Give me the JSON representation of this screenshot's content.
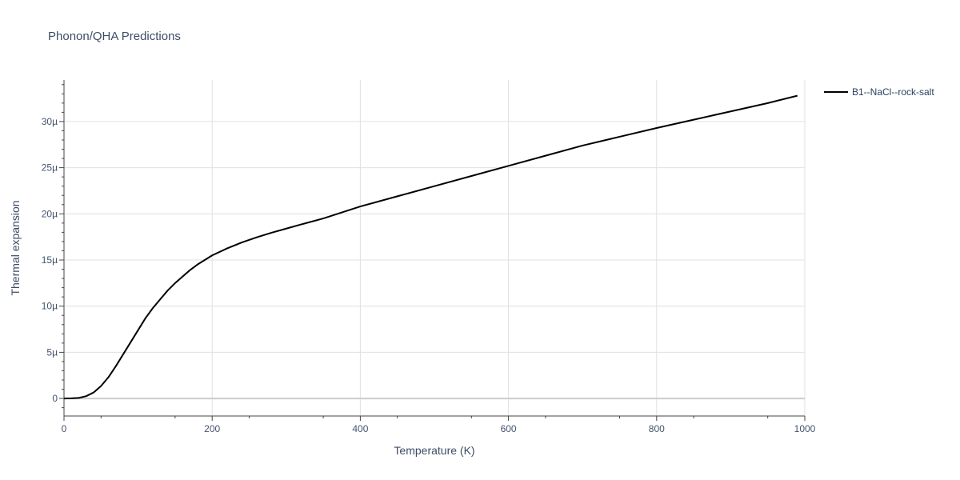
{
  "chart_data": {
    "type": "line",
    "title": "Phonon/QHA Predictions",
    "xlabel": "Temperature (K)",
    "ylabel": "Thermal expansion",
    "xlim": [
      0,
      1000
    ],
    "ylim": [
      -1.9e-06,
      3.45e-05
    ],
    "x_ticks": [
      0,
      200,
      400,
      600,
      800,
      1000
    ],
    "x_tick_labels": [
      "0",
      "200",
      "400",
      "600",
      "800",
      "1000"
    ],
    "y_ticks": [
      0,
      5e-06,
      1e-05,
      1.5e-05,
      2e-05,
      2.5e-05,
      3e-05
    ],
    "y_tick_labels": [
      "0",
      "5µ",
      "10µ",
      "15µ",
      "20µ",
      "25µ",
      "30µ"
    ],
    "grid": true,
    "legend_position": "top-right",
    "colors": {
      "line": "#000000",
      "grid": "#e0e0e0",
      "zero_line": "#cccccc",
      "axis": "#444444"
    },
    "series": [
      {
        "name": "B1--NaCl--rock-salt",
        "x": [
          0,
          10,
          20,
          30,
          40,
          50,
          60,
          70,
          80,
          90,
          100,
          110,
          120,
          130,
          140,
          150,
          160,
          170,
          180,
          190,
          200,
          220,
          240,
          260,
          280,
          300,
          320,
          350,
          400,
          450,
          500,
          550,
          600,
          650,
          700,
          750,
          800,
          850,
          900,
          950,
          990
        ],
        "y": [
          0,
          2e-08,
          6e-08,
          2.5e-07,
          6.5e-07,
          1.35e-06,
          2.3e-06,
          3.5e-06,
          4.8e-06,
          6.1e-06,
          7.4e-06,
          8.7e-06,
          9.8e-06,
          1.075e-05,
          1.17e-05,
          1.25e-05,
          1.32e-05,
          1.39e-05,
          1.45e-05,
          1.5e-05,
          1.55e-05,
          1.625e-05,
          1.69e-05,
          1.745e-05,
          1.795e-05,
          1.84e-05,
          1.885e-05,
          1.95e-05,
          2.08e-05,
          2.19e-05,
          2.3e-05,
          2.41e-05,
          2.52e-05,
          2.63e-05,
          2.74e-05,
          2.835e-05,
          2.93e-05,
          3.02e-05,
          3.11e-05,
          3.2e-05,
          3.28e-05
        ]
      }
    ]
  }
}
